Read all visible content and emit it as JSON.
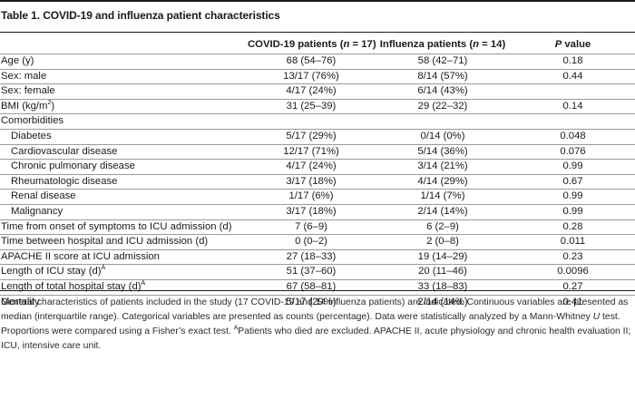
{
  "table": {
    "title": "Table 1. COVID-19 and influenza patient characteristics",
    "headers": {
      "col1_prefix": "COVID-19 patients (",
      "col1_n": "n",
      "col1_suffix": " = 17)",
      "col2_prefix": "Influenza patients (",
      "col2_n": "n",
      "col2_suffix": " = 14)",
      "col3_p": "P",
      "col3_suffix": " value"
    },
    "rows": [
      {
        "label": "Age (y)",
        "covid": "68 (54–76)",
        "flu": "58 (42–71)",
        "p": "0.18"
      },
      {
        "label": "Sex: male",
        "covid": "13/17 (76%)",
        "flu": "8/14 (57%)",
        "p": "0.44"
      },
      {
        "label": "Sex: female",
        "covid": "4/17 (24%)",
        "flu": "6/14 (43%)",
        "p": ""
      },
      {
        "label": "BMI (kg/m",
        "label_sup": "2",
        "label_end": ")",
        "covid": "31 (25–39)",
        "flu": "29 (22–32)",
        "p": "0.14"
      },
      {
        "label": "Comorbidities",
        "covid": "",
        "flu": "",
        "p": ""
      },
      {
        "label": "Diabetes",
        "covid": "5/17 (29%)",
        "flu": "0/14 (0%)",
        "p": "0.048"
      },
      {
        "label": "Cardiovascular disease",
        "covid": "12/17 (71%)",
        "flu": "5/14 (36%)",
        "p": "0.076"
      },
      {
        "label": "Chronic pulmonary disease",
        "covid": "4/17 (24%)",
        "flu": "3/14 (21%)",
        "p": "0.99"
      },
      {
        "label": "Rheumatologic disease",
        "covid": "3/17 (18%)",
        "flu": "4/14 (29%)",
        "p": "0.67"
      },
      {
        "label": "Renal disease",
        "covid": "1/17 (6%)",
        "flu": "1/14 (7%)",
        "p": "0.99"
      },
      {
        "label": "Malignancy",
        "covid": "3/17 (18%)",
        "flu": "2/14 (14%)",
        "p": "0.99"
      },
      {
        "label": "Time from onset of symptoms to ICU admission (d)",
        "covid": "7 (6–9)",
        "flu": "6 (2–9)",
        "p": "0.28"
      },
      {
        "label": "Time between hospital and ICU admission (d)",
        "covid": "0 (0–2)",
        "flu": "2 (0–8)",
        "p": "0.011"
      },
      {
        "label": "APACHE II score at ICU admission",
        "covid": "27 (18–33)",
        "flu": "19 (14–29)",
        "p": "0.23"
      },
      {
        "label": "Length of ICU stay (d)",
        "label_sup": "A",
        "covid": "51 (37–60)",
        "flu": "20 (11–46)",
        "p": "0.0096"
      },
      {
        "label": "Length of total hospital stay (d)",
        "label_sup": "A",
        "covid": "67 (58–81)",
        "flu": "33 (18–83)",
        "p": "0.27"
      },
      {
        "label": "Mortality",
        "covid": "5/17 (29%)",
        "flu": "2/14 (14%)",
        "p": "0.41"
      }
    ],
    "note": {
      "part1": "General characteristics of patients included in the study (17 COVID-19 and 14 influenza patients) are indicated. Continuous variables are presented as median (interquartile range). Categorical variables are presented as counts (percentage). Data were statistically analyzed by a Mann-Whitney ",
      "u": "U",
      "part2": " test. Proportions were compared using a Fisher’s exact test. ",
      "sup": "A",
      "part3": "Patients who died are excluded. APACHE II, acute physiology and chronic health evaluation II; ICU, intensive care unit."
    }
  }
}
